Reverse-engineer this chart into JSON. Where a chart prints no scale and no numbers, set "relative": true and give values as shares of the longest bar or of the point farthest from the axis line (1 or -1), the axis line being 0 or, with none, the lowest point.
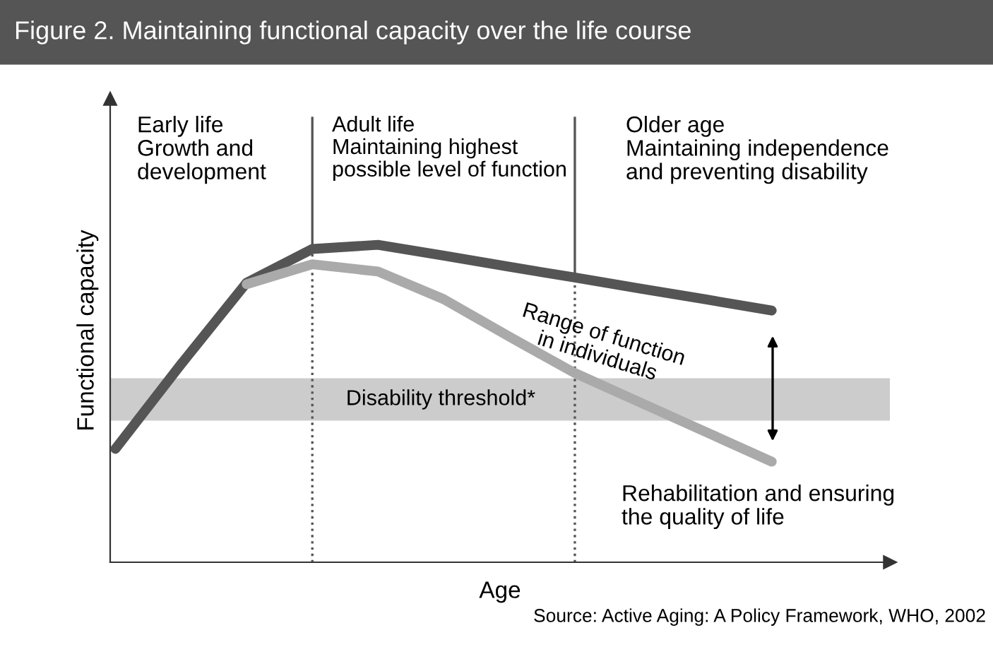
{
  "chart_data": {
    "type": "line",
    "relative": true,
    "title": "Figure 2. Maintaining functional capacity over the life course",
    "xlabel": "Age",
    "ylabel": "Functional capacity",
    "categories": [
      null,
      null,
      null,
      null,
      null,
      null,
      null,
      null,
      null,
      null,
      null
    ],
    "series": [
      {
        "color": "#555555",
        "values": [
          0.357,
          0.624,
          0.881,
          0.987,
          1.0,
          0.966,
          0.931,
          0.897,
          0.862,
          0.828,
          0.793
        ]
      },
      {
        "color": "#aaaaaa",
        "values": [
          null,
          null,
          0.876,
          0.939,
          0.916,
          0.829,
          0.711,
          0.596,
          0.503,
          0.41,
          0.317
        ]
      }
    ],
    "bands": [
      {
        "axis": "y",
        "from": 0.446,
        "to": 0.58,
        "label": "Disability threshold*",
        "color": "#cccccc"
      }
    ],
    "annotations": [
      "Early life\nGrowth and\ndevelopment",
      "Adult life\nMaintaining highest\npossible level of function",
      "Older age\nMaintaining independence\nand preventing disability",
      "Range of function\nin individuals",
      "Rehabilitation and ensuring\nthe quality of life",
      "Source: Active Aging: A Policy Framework, WHO, 2002"
    ],
    "legend": false
  }
}
